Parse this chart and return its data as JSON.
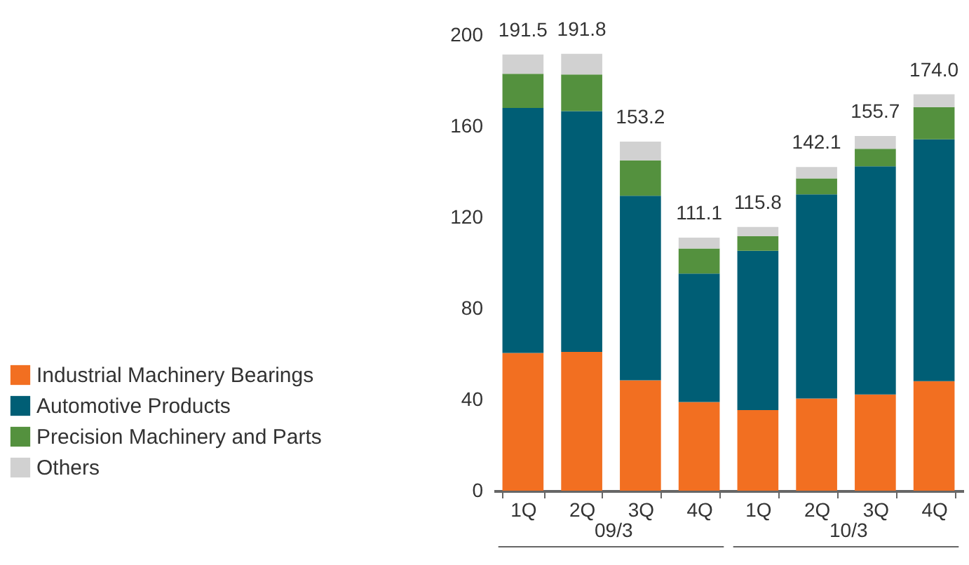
{
  "chart_data": {
    "type": "bar",
    "stacked": true,
    "categories": [
      "1Q",
      "2Q",
      "3Q",
      "4Q",
      "1Q",
      "2Q",
      "3Q",
      "4Q"
    ],
    "series": [
      {
        "name": "Industrial Machinery Bearings",
        "color": "#f26f21",
        "values": [
          60.5,
          60.9,
          48.5,
          38.9,
          35.4,
          40.5,
          42.2,
          48.1
        ]
      },
      {
        "name": "Automotive Products",
        "color": "#005e75",
        "values": [
          107.5,
          105.7,
          81,
          56.4,
          69.9,
          89.6,
          100.2,
          106.1
        ]
      },
      {
        "name": "Precision Machinery and Parts",
        "color": "#54913e",
        "values": [
          15,
          16.1,
          15.5,
          11,
          6.5,
          7,
          7.7,
          14.2
        ]
      },
      {
        "name": "Others",
        "color": "#d1d1d1",
        "values": [
          8.5,
          9.1,
          8.2,
          4.8,
          4,
          5,
          5.6,
          5.6
        ]
      }
    ],
    "totals": [
      "191.5",
      "191.8",
      "153.2",
      "111.1",
      "115.8",
      "142.1",
      "155.7",
      "174.0"
    ],
    "annotations": [
      "09/3",
      "10/3"
    ],
    "ylim": [
      0,
      200
    ],
    "yticks": [
      0,
      40,
      80,
      120,
      160,
      200
    ],
    "grid": false,
    "legend": "bottom left"
  }
}
